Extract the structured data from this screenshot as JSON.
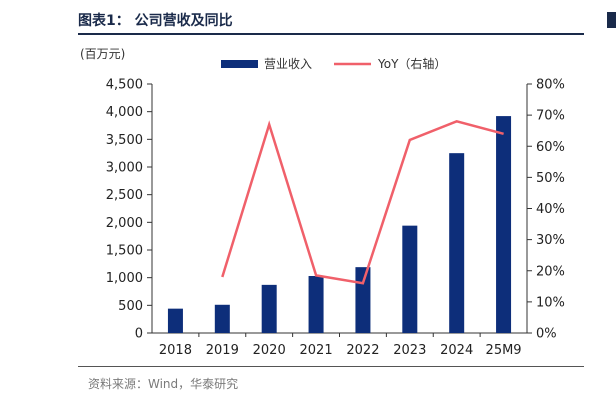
{
  "figure": {
    "title": "图表1：  公司营收及同比",
    "source": "资料来源：Wind，华泰研究",
    "unit_label": "(百万元)",
    "colors": {
      "bar": "#0d2e7a",
      "line": "#f0606a",
      "axis": "#333333",
      "heading": "#1a2a4a"
    }
  },
  "chart_data": {
    "type": "bar",
    "categories": [
      "2018",
      "2019",
      "2020",
      "2021",
      "2022",
      "2023",
      "2024",
      "25M9"
    ],
    "series": [
      {
        "name": "营业收入",
        "type": "bar",
        "axis": "left",
        "values": [
          440,
          510,
          870,
          1030,
          1190,
          1940,
          3250,
          3920
        ]
      },
      {
        "name": "YoY（右轴）",
        "type": "line",
        "axis": "right",
        "values": [
          null,
          18,
          67,
          18.5,
          16,
          62,
          68,
          64
        ]
      }
    ],
    "y_left": {
      "min": 0,
      "max": 4500,
      "ticks": [
        "0",
        "500",
        "1,000",
        "1,500",
        "2,000",
        "2,500",
        "3,000",
        "3,500",
        "4,000",
        "4,500"
      ]
    },
    "y_right": {
      "min": 0,
      "max": 80,
      "ticks": [
        "0%",
        "10%",
        "20%",
        "30%",
        "40%",
        "50%",
        "60%",
        "70%",
        "80%"
      ]
    },
    "legend": {
      "position": "top-center"
    },
    "grid": false
  }
}
